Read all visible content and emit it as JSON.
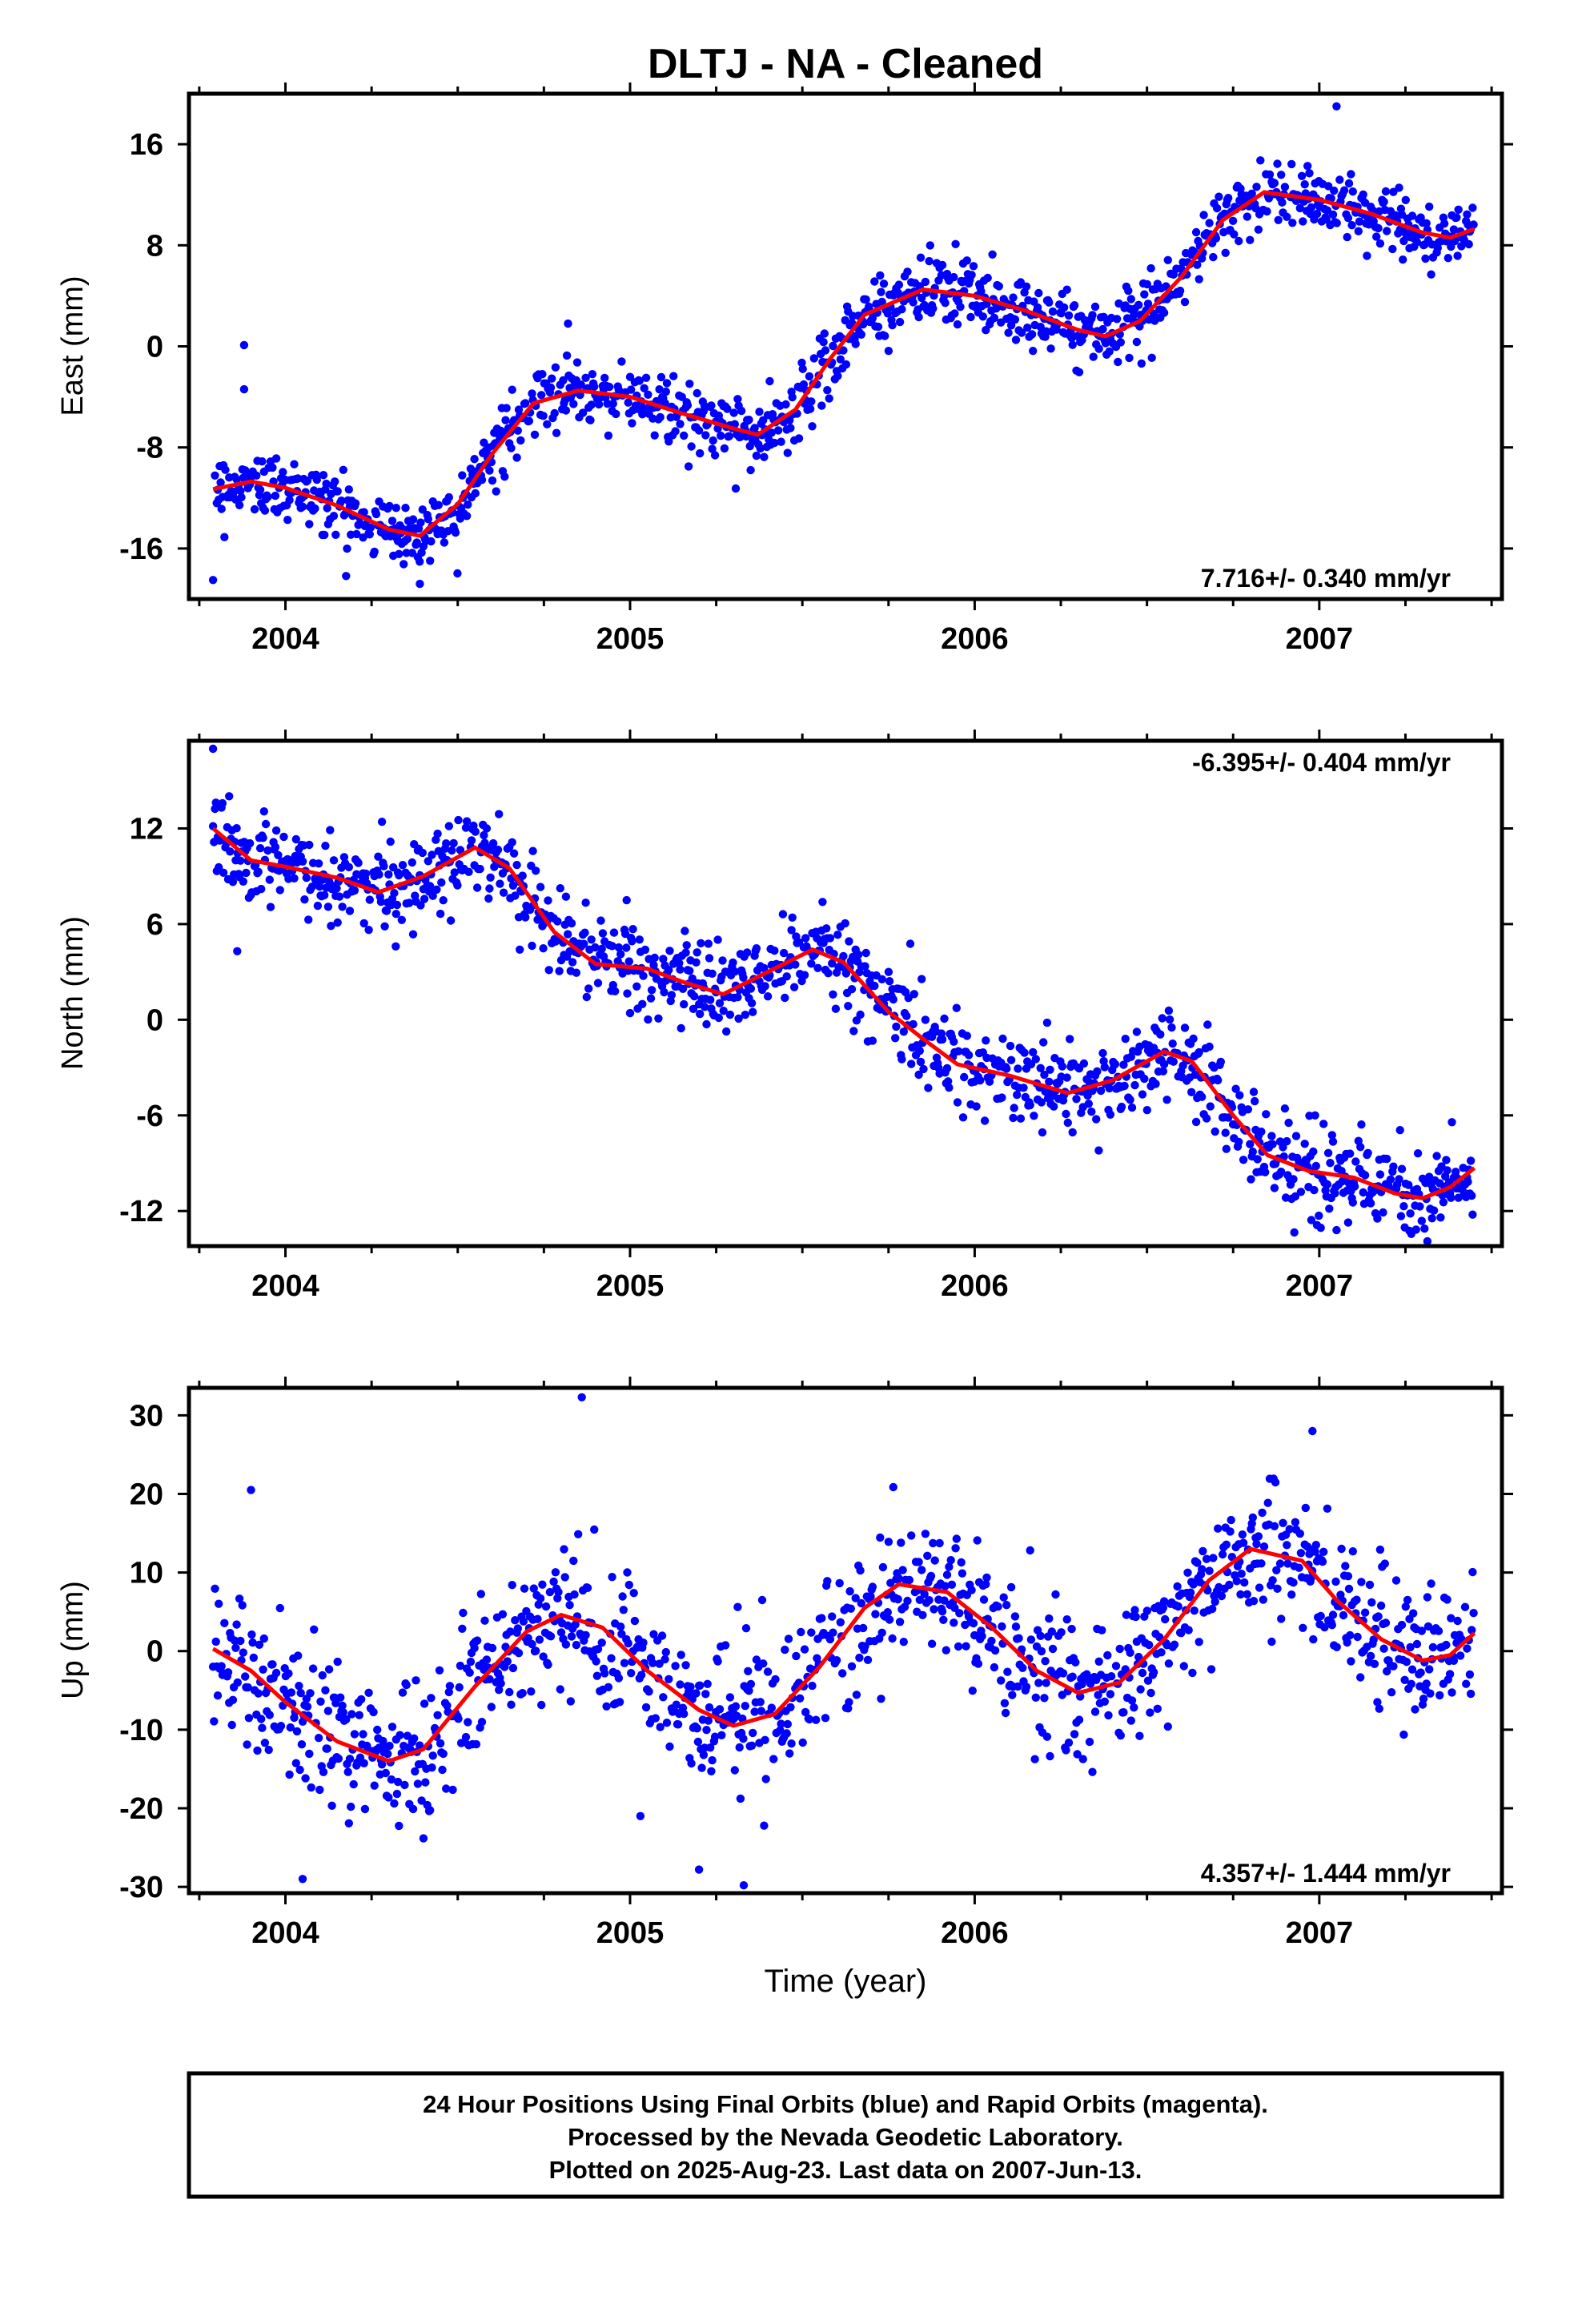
{
  "chart_data": {
    "title": "DLTJ  - NA - Cleaned",
    "xlabel": "Time (year)",
    "xlim": [
      2003.72,
      2007.53
    ],
    "x_ticks": [
      "2004",
      "2005",
      "2006",
      "2007"
    ],
    "series_colors": {
      "final_orbits": "#0000ff",
      "rapid_orbits": "#ff00ff",
      "model": "#ff0000"
    },
    "panels": [
      {
        "type": "scatter",
        "ylabel": "East (mm)",
        "ylim": [
          -20,
          20
        ],
        "y_ticks": [
          16,
          8,
          0,
          -8,
          -16
        ],
        "rate_label": "7.716+/- 0.340 mm/yr",
        "rate_position": "bottom-right",
        "model_curve": [
          [
            2003.79,
            -11.3
          ],
          [
            2003.9,
            -10.7
          ],
          [
            2004.0,
            -11.2
          ],
          [
            2004.15,
            -12.6
          ],
          [
            2004.3,
            -14.5
          ],
          [
            2004.39,
            -15.0
          ],
          [
            2004.5,
            -12.5
          ],
          [
            2004.6,
            -8.5
          ],
          [
            2004.72,
            -4.5
          ],
          [
            2004.85,
            -3.5
          ],
          [
            2005.0,
            -4.0
          ],
          [
            2005.15,
            -5.3
          ],
          [
            2005.3,
            -6.5
          ],
          [
            2005.37,
            -7.0
          ],
          [
            2005.48,
            -5.0
          ],
          [
            2005.58,
            -1.0
          ],
          [
            2005.68,
            2.5
          ],
          [
            2005.85,
            4.5
          ],
          [
            2006.0,
            4.0
          ],
          [
            2006.15,
            2.8
          ],
          [
            2006.3,
            1.3
          ],
          [
            2006.38,
            0.8
          ],
          [
            2006.48,
            2.0
          ],
          [
            2006.6,
            5.5
          ],
          [
            2006.72,
            10.0
          ],
          [
            2006.84,
            12.2
          ],
          [
            2007.0,
            11.6
          ],
          [
            2007.15,
            10.5
          ],
          [
            2007.3,
            9.0
          ],
          [
            2007.38,
            8.6
          ],
          [
            2007.45,
            9.3
          ]
        ],
        "spread": 1.3,
        "outliers": [
          [
            2003.88,
            0.1
          ],
          [
            2003.88,
            -3.4
          ],
          [
            2004.82,
            1.8
          ],
          [
            2007.05,
            19.0
          ],
          [
            2003.79,
            -18.5
          ],
          [
            2004.39,
            -18.8
          ],
          [
            2005.35,
            -9.8
          ]
        ]
      },
      {
        "type": "scatter",
        "ylabel": "North (mm)",
        "ylim": [
          -14.2,
          17.5
        ],
        "y_ticks": [
          12,
          6,
          0,
          -6,
          -12
        ],
        "rate_label": "-6.395+/- 0.404 mm/yr",
        "rate_position": "top-right",
        "model_curve": [
          [
            2003.79,
            12.0
          ],
          [
            2003.9,
            10.0
          ],
          [
            2004.0,
            9.6
          ],
          [
            2004.15,
            8.9
          ],
          [
            2004.27,
            8.0
          ],
          [
            2004.4,
            9.0
          ],
          [
            2004.55,
            10.8
          ],
          [
            2004.65,
            9.5
          ],
          [
            2004.78,
            5.5
          ],
          [
            2004.9,
            3.5
          ],
          [
            2005.05,
            3.2
          ],
          [
            2005.15,
            2.4
          ],
          [
            2005.27,
            1.6
          ],
          [
            2005.4,
            3.0
          ],
          [
            2005.53,
            4.4
          ],
          [
            2005.62,
            3.6
          ],
          [
            2005.75,
            0.5
          ],
          [
            2005.85,
            -1.2
          ],
          [
            2005.95,
            -2.8
          ],
          [
            2006.1,
            -3.5
          ],
          [
            2006.27,
            -4.6
          ],
          [
            2006.4,
            -3.8
          ],
          [
            2006.55,
            -2.0
          ],
          [
            2006.63,
            -2.6
          ],
          [
            2006.75,
            -6.0
          ],
          [
            2006.85,
            -8.5
          ],
          [
            2006.97,
            -9.5
          ],
          [
            2007.1,
            -9.9
          ],
          [
            2007.22,
            -10.9
          ],
          [
            2007.3,
            -11.2
          ],
          [
            2007.38,
            -10.5
          ],
          [
            2007.45,
            -9.3
          ]
        ],
        "spread": 1.4,
        "outliers": [
          [
            2003.79,
            17.0
          ],
          [
            2003.86,
            4.3
          ],
          [
            2004.32,
            4.6
          ],
          [
            2004.68,
            4.4
          ],
          [
            2004.99,
            7.5
          ],
          [
            2006.36,
            -8.2
          ],
          [
            2007.05,
            -13.2
          ]
        ]
      },
      {
        "type": "scatter",
        "ylabel": "Up (mm)",
        "ylim": [
          -30.8,
          33.5
        ],
        "y_ticks": [
          30,
          20,
          10,
          0,
          -10,
          -20,
          -30
        ],
        "rate_label": "4.357+/- 1.444 mm/yr",
        "rate_position": "bottom-right",
        "model_curve": [
          [
            2003.79,
            0.3
          ],
          [
            2003.9,
            -2.5
          ],
          [
            2004.0,
            -6.5
          ],
          [
            2004.15,
            -11.5
          ],
          [
            2004.3,
            -14.0
          ],
          [
            2004.4,
            -12.5
          ],
          [
            2004.55,
            -4.5
          ],
          [
            2004.7,
            2.5
          ],
          [
            2004.8,
            4.6
          ],
          [
            2004.92,
            3.0
          ],
          [
            2005.05,
            -2.5
          ],
          [
            2005.2,
            -7.5
          ],
          [
            2005.3,
            -9.5
          ],
          [
            2005.42,
            -8.0
          ],
          [
            2005.55,
            -2.0
          ],
          [
            2005.68,
            5.5
          ],
          [
            2005.78,
            8.5
          ],
          [
            2005.92,
            7.5
          ],
          [
            2006.05,
            3.0
          ],
          [
            2006.18,
            -2.5
          ],
          [
            2006.3,
            -5.3
          ],
          [
            2006.42,
            -4.0
          ],
          [
            2006.55,
            1.5
          ],
          [
            2006.68,
            9.0
          ],
          [
            2006.8,
            13.0
          ],
          [
            2006.95,
            11.5
          ],
          [
            2007.05,
            6.5
          ],
          [
            2007.18,
            1.5
          ],
          [
            2007.3,
            -1.2
          ],
          [
            2007.38,
            -0.5
          ],
          [
            2007.45,
            2.3
          ]
        ],
        "spread": 4.6,
        "outliers": [
          [
            2004.86,
            32.3
          ],
          [
            2005.2,
            -27.8
          ],
          [
            2005.33,
            -29.8
          ],
          [
            2003.9,
            20.5
          ],
          [
            2004.05,
            -29.0
          ],
          [
            2006.98,
            28.0
          ],
          [
            2005.03,
            -21.0
          ]
        ]
      }
    ]
  },
  "footer": {
    "line1": "24 Hour Positions Using Final Orbits (blue) and Rapid Orbits (magenta).",
    "line2": "Processed by the Nevada Geodetic Laboratory.",
    "line3": "Plotted on 2025-Aug-23. Last data on 2007-Jun-13."
  }
}
